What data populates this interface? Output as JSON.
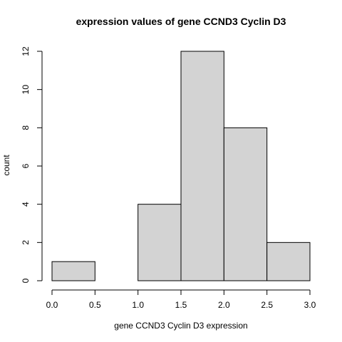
{
  "chart_data": {
    "type": "bar",
    "title": "expression values of gene CCND3 Cyclin D3",
    "xlabel": "gene CCND3 Cyclin D3 expression",
    "ylabel": "count",
    "bins": [
      {
        "start": 0.0,
        "end": 0.5,
        "count": 1
      },
      {
        "start": 0.5,
        "end": 1.0,
        "count": 0
      },
      {
        "start": 1.0,
        "end": 1.5,
        "count": 4
      },
      {
        "start": 1.5,
        "end": 2.0,
        "count": 12
      },
      {
        "start": 2.0,
        "end": 2.5,
        "count": 8
      },
      {
        "start": 2.5,
        "end": 3.0,
        "count": 2
      }
    ],
    "xlim": [
      0.0,
      3.0
    ],
    "ylim": [
      0,
      12
    ],
    "x_ticks": [
      "0.0",
      "0.5",
      "1.0",
      "1.5",
      "2.0",
      "2.5",
      "3.0"
    ],
    "y_ticks": [
      "0",
      "2",
      "4",
      "6",
      "8",
      "10",
      "12"
    ],
    "grid": false,
    "bar_fill": "#d3d3d3",
    "bar_stroke": "#000000"
  }
}
